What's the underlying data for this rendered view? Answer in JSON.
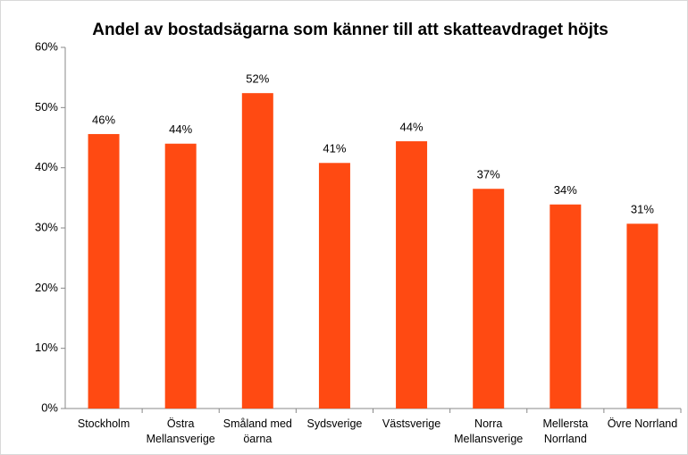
{
  "chart_data": {
    "type": "bar",
    "title": "Andel av bostadsägarna som känner till att skatteavdraget höjts",
    "categories": [
      "Stockholm",
      "Östra Mellansverige",
      "Småland med öarna",
      "Sydsverige",
      "Västsverige",
      "Norra Mellansverige",
      "Mellersta Norrland",
      "Övre Norrland"
    ],
    "values": [
      45.6,
      44.0,
      52.4,
      40.8,
      44.4,
      36.5,
      33.9,
      30.7
    ],
    "value_labels": [
      "46%",
      "44%",
      "52%",
      "41%",
      "44%",
      "37%",
      "34%",
      "31%"
    ],
    "color": "#ff4a12",
    "ylim": [
      0,
      60
    ],
    "yticks": [
      {
        "value": 0,
        "label": "0%"
      },
      {
        "value": 10,
        "label": "10%"
      },
      {
        "value": 20,
        "label": "20%"
      },
      {
        "value": 30,
        "label": "30%"
      },
      {
        "value": 40,
        "label": "40%"
      },
      {
        "value": 50,
        "label": "50%"
      },
      {
        "value": 60,
        "label": "60%"
      }
    ],
    "grid": false
  }
}
